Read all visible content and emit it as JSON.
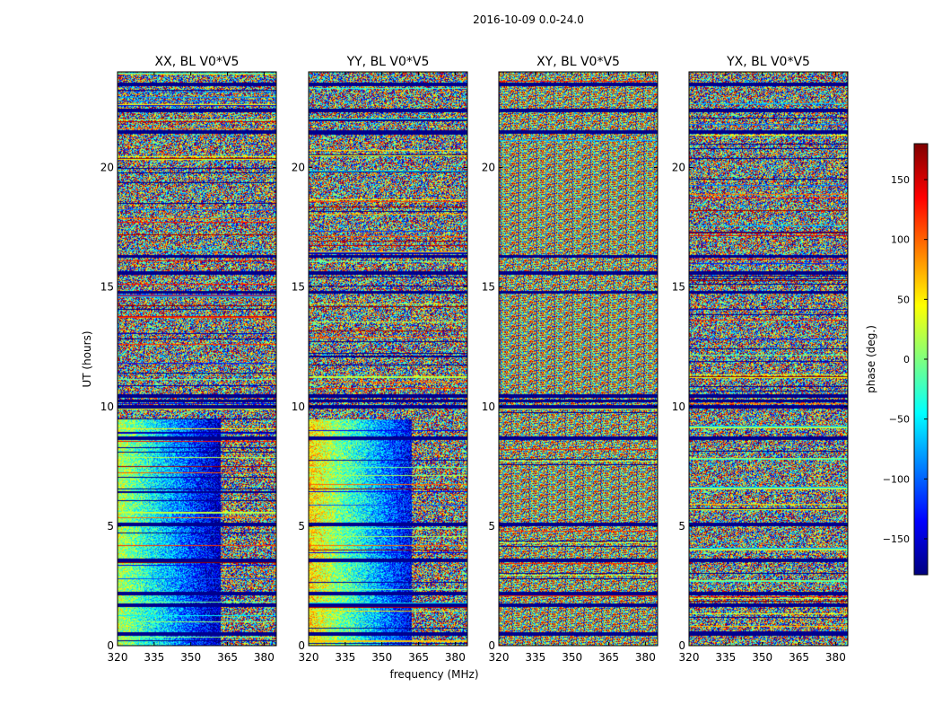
{
  "figure_title": "2016-10-09 0.0-24.0",
  "colors": {
    "colormap": "jet",
    "stops": [
      "#00007f",
      "#0000ff",
      "#007fff",
      "#00ffff",
      "#7fff7f",
      "#ffff00",
      "#ff7f00",
      "#ff0000",
      "#7f0000"
    ]
  },
  "chart_data": [
    {
      "type": "heatmap",
      "title": "XX, BL V0*V5",
      "xlabel": "",
      "ylabel": "UT (hours)",
      "x_unit": "MHz",
      "xlim": [
        320,
        385
      ],
      "ylim": [
        0,
        24
      ],
      "x_ticks": [
        320,
        335,
        350,
        365,
        380
      ],
      "y_ticks": [
        0,
        5,
        10,
        15,
        20
      ],
      "value_range": [
        -180,
        180
      ],
      "description_values": "phase per (frequency, UT) cell; coherent negative phase (about -90 to -150 deg) below 362 MHz for 0-9 h, noisy elsewhere; flagged (dark blue) rows at ~0.5, 1.7, 2.2, 10.0, 10.4, 15.6, 16.3, 21.5 h",
      "coherent_region": {
        "freq_max": 362,
        "ut_min": 0,
        "ut_max": 9.5,
        "phase": -110
      },
      "flagged_hours": [
        0.5,
        1.7,
        2.2,
        3.6,
        5.1,
        8.7,
        10.0,
        10.25,
        10.45,
        14.8,
        15.6,
        16.3,
        21.5,
        22.4,
        23.5
      ]
    },
    {
      "type": "heatmap",
      "title": "YY, BL V0*V5",
      "xlabel": "frequency (MHz)",
      "ylabel": "",
      "xlim": [
        320,
        385
      ],
      "ylim": [
        0,
        24
      ],
      "x_ticks": [
        320,
        335,
        350,
        365,
        380
      ],
      "y_ticks": [
        0,
        5,
        10,
        15,
        20
      ],
      "value_range": [
        -180,
        180
      ],
      "coherent_region": {
        "freq_max": 362,
        "ut_min": 0,
        "ut_max": 9.5,
        "phase": -90
      },
      "flagged_hours": [
        0.5,
        1.7,
        2.2,
        3.6,
        5.1,
        8.7,
        10.0,
        10.25,
        10.45,
        14.8,
        15.6,
        16.3,
        21.5,
        22.4,
        23.5
      ]
    },
    {
      "type": "heatmap",
      "title": "XY, BL V0*V5",
      "xlabel": "",
      "ylabel": "",
      "xlim": [
        320,
        385
      ],
      "ylim": [
        0,
        24
      ],
      "x_ticks": [
        320,
        335,
        350,
        365,
        380
      ],
      "y_ticks": [
        0,
        5,
        10,
        15,
        20
      ],
      "value_range": [
        -180,
        180
      ],
      "coherent_region": null,
      "flagged_hours": [
        0.5,
        1.7,
        2.2,
        3.6,
        5.1,
        8.7,
        10.0,
        10.25,
        10.45,
        14.8,
        15.6,
        16.3,
        21.5,
        22.4,
        23.5
      ]
    },
    {
      "type": "heatmap",
      "title": "YX, BL V0*V5",
      "xlabel": "",
      "ylabel": "",
      "xlim": [
        320,
        385
      ],
      "ylim": [
        0,
        24
      ],
      "x_ticks": [
        320,
        335,
        350,
        365,
        380
      ],
      "y_ticks": [
        0,
        5,
        10,
        15,
        20
      ],
      "value_range": [
        -180,
        180
      ],
      "coherent_region": null,
      "flagged_hours": [
        0.5,
        1.7,
        2.2,
        3.6,
        5.1,
        8.7,
        10.0,
        10.25,
        10.45,
        14.8,
        15.6,
        16.3,
        21.5,
        22.4,
        23.5
      ]
    }
  ],
  "colorbar": {
    "label": "phase (deg.)",
    "range": [
      -180,
      180
    ],
    "ticks": [
      150,
      100,
      50,
      0,
      -50,
      -100,
      -150
    ],
    "tick_labels": [
      "150",
      "100",
      "50",
      "0",
      "−50",
      "−100",
      "−150"
    ]
  }
}
